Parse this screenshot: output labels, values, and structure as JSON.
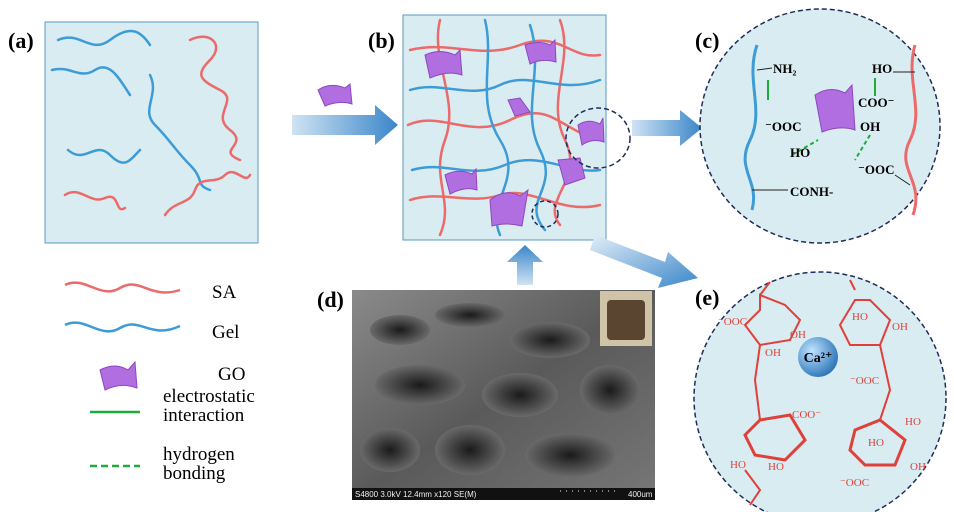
{
  "panels": [
    "(a)",
    "(b)",
    "(c)",
    "(d)",
    "(e)"
  ],
  "legend": [
    {
      "lines": [
        "SA"
      ]
    },
    {
      "lines": [
        "Gel"
      ]
    },
    {
      "lines": [
        "GO"
      ]
    },
    {
      "lines": [
        "electrostatic",
        "interaction"
      ]
    },
    {
      "lines": [
        "hydrogen",
        "bonding"
      ]
    }
  ],
  "panel_c": [
    "NH₂",
    "HO",
    "COO⁻",
    "⁻OOC",
    "OH",
    "HO",
    "⁻OOC",
    "CONH-"
  ],
  "panel_e": {
    "ion": "Ca²⁺",
    "groups": [
      "⁻OOC",
      "OH",
      "OH",
      "HO",
      "OH",
      "⁻OOC",
      "COO⁻",
      "HO",
      "HO",
      "HO",
      "HO",
      "⁻OOC",
      "OH"
    ]
  },
  "sem": {
    "caption": "S4800 3.0kV 12.4mm x120 SE(M)",
    "scale": "400um"
  }
}
